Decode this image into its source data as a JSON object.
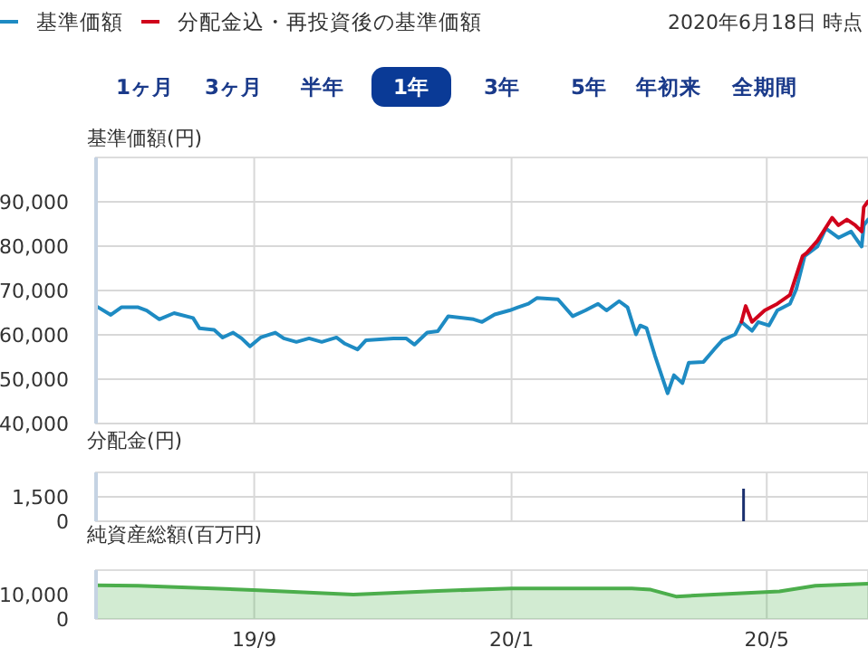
{
  "chart_data": [
    {
      "type": "line",
      "ylabel": "基準価額(円)",
      "legend": "top left",
      "grid": true,
      "tick_labels": "y",
      "annotations": [
        "2020年6月18日 時点",
        "1ヶ月",
        "3ヶ月",
        "半年",
        "1年",
        "3年",
        "5年",
        "年初来",
        "全期間"
      ],
      "xlim": [
        "2019-06-18",
        "2020-06-18"
      ],
      "xticks": [
        {
          "value": "2019-09-01",
          "label": null
        },
        {
          "value": "2020-01-01",
          "label": null
        },
        {
          "value": "2020-05-01",
          "label": null
        }
      ],
      "ylim": [
        40000,
        100000
      ],
      "yticks": [
        {
          "value": 40000,
          "label": "40,000"
        },
        {
          "value": 50000,
          "label": "50,000"
        },
        {
          "value": 60000,
          "label": "60,000"
        },
        {
          "value": 70000,
          "label": "70,000"
        },
        {
          "value": 80000,
          "label": "80,000"
        },
        {
          "value": 90000,
          "label": "90,000"
        }
      ],
      "series": [
        {
          "name": "基準価額",
          "color": "#1e8bc3",
          "x": [
            "2019-06-18",
            "2019-06-25",
            "2019-06-30",
            "2019-07-08",
            "2019-07-12",
            "2019-07-18",
            "2019-07-25",
            "2019-08-03",
            "2019-08-06",
            "2019-08-13",
            "2019-08-17",
            "2019-08-22",
            "2019-08-26",
            "2019-08-30",
            "2019-09-04",
            "2019-09-11",
            "2019-09-15",
            "2019-09-21",
            "2019-09-27",
            "2019-10-03",
            "2019-10-10",
            "2019-10-14",
            "2019-10-20",
            "2019-10-24",
            "2019-11-06",
            "2019-11-12",
            "2019-11-16",
            "2019-11-22",
            "2019-11-27",
            "2019-12-02",
            "2019-12-14",
            "2019-12-18",
            "2019-12-24",
            "2019-12-31",
            "2020-01-04",
            "2020-01-09",
            "2020-01-13",
            "2020-01-23",
            "2020-01-30",
            "2020-02-05",
            "2020-02-11",
            "2020-02-15",
            "2020-02-21",
            "2020-02-25",
            "2020-02-29",
            "2020-03-02",
            "2020-03-05",
            "2020-03-09",
            "2020-03-15",
            "2020-03-18",
            "2020-03-22",
            "2020-03-25",
            "2020-04-01",
            "2020-04-06",
            "2020-04-10",
            "2020-04-16",
            "2020-04-19",
            "2020-04-24",
            "2020-04-27",
            "2020-05-02",
            "2020-05-06",
            "2020-05-12",
            "2020-05-15",
            "2020-05-19",
            "2020-05-25",
            "2020-05-29",
            "2020-06-04",
            "2020-06-10",
            "2020-06-12",
            "2020-06-15",
            "2020-06-16",
            "2020-06-18"
          ],
          "values": [
            66500,
            64500,
            66200,
            66200,
            65500,
            63500,
            64900,
            63800,
            61500,
            61100,
            59400,
            60500,
            59200,
            57400,
            59400,
            60500,
            59200,
            58400,
            59200,
            58400,
            59400,
            58000,
            56700,
            58800,
            59200,
            59200,
            57800,
            60500,
            60800,
            64200,
            63500,
            62900,
            64600,
            65500,
            66200,
            67000,
            68300,
            68000,
            64200,
            65500,
            67000,
            65500,
            67600,
            66200,
            60100,
            62100,
            61500,
            55300,
            46800,
            50900,
            49100,
            53700,
            53900,
            56700,
            58800,
            60100,
            62900,
            60900,
            62900,
            62100,
            65500,
            67000,
            70300,
            77800,
            79900,
            84000,
            81900,
            83300,
            81900,
            79900,
            84700,
            86000
          ]
        },
        {
          "name": "分配金込・再投資後の基準価額",
          "color": "#d0021b",
          "x": [
            "2020-04-19",
            "2020-04-21",
            "2020-04-24",
            "2020-04-30",
            "2020-05-06",
            "2020-05-12",
            "2020-05-18",
            "2020-05-20",
            "2020-05-25",
            "2020-06-01",
            "2020-06-04",
            "2020-06-08",
            "2020-06-12",
            "2020-06-15",
            "2020-06-16",
            "2020-06-18"
          ],
          "values": [
            62900,
            66500,
            62900,
            65500,
            67000,
            69000,
            77800,
            78500,
            81200,
            86400,
            84700,
            86000,
            84700,
            83300,
            88800,
            90100
          ]
        }
      ]
    },
    {
      "type": "bar",
      "ylabel": "分配金(円)",
      "grid": true,
      "tick_labels": "y",
      "xlim": [
        "2019-06-18",
        "2020-06-18"
      ],
      "xticks": [
        {
          "value": "2019-09-01",
          "label": null
        },
        {
          "value": "2020-01-01",
          "label": null
        },
        {
          "value": "2020-05-01",
          "label": null
        }
      ],
      "ylim": [
        0,
        3000
      ],
      "yticks": [
        {
          "value": 0,
          "label": "0"
        },
        {
          "value": 1500,
          "label": "1,500"
        }
      ],
      "x": [
        "2020-04-20"
      ],
      "values": [
        2000
      ],
      "color": "#1a2f6e"
    },
    {
      "type": "area",
      "ylabel": "純資産総額(百万円)",
      "grid": "x",
      "xlim": [
        "2019-06-18",
        "2020-06-18"
      ],
      "xticks": [
        {
          "value": "2019-09-01",
          "label": "19/9"
        },
        {
          "value": "2020-01-01",
          "label": "20/1"
        },
        {
          "value": "2020-05-01",
          "label": "20/5"
        }
      ],
      "ylim": [
        0,
        20000
      ],
      "yticks": [
        {
          "value": 0,
          "label": "0"
        },
        {
          "value": 10000,
          "label": "10,000"
        }
      ],
      "x": [
        "2019-06-18",
        "2019-07-08",
        "2019-09-03",
        "2019-10-18",
        "2019-11-27",
        "2020-01-01",
        "2020-02-27",
        "2020-03-07",
        "2020-03-19",
        "2020-04-17",
        "2020-05-07",
        "2020-05-24",
        "2020-06-18"
      ],
      "values": [
        13800,
        13600,
        11800,
        10000,
        11500,
        12500,
        12500,
        12000,
        9200,
        10500,
        11300,
        13600,
        14400
      ],
      "color": "#4cae4c"
    }
  ]
}
